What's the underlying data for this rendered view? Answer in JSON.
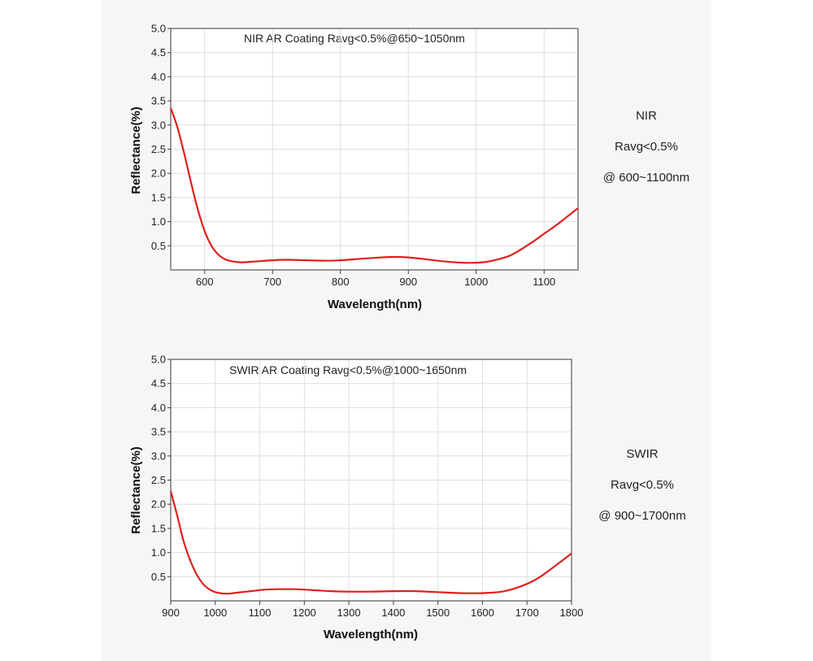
{
  "chart_data": [
    {
      "type": "line",
      "title": "NIR AR Coating Ravg<0.5%@650~1050nm",
      "xlabel": "Wavelength(nm)",
      "ylabel": "Reflectance(%)",
      "xlim": [
        550,
        1150
      ],
      "ylim": [
        0,
        5.0
      ],
      "x_ticks": [
        "600",
        "700",
        "800",
        "900",
        "1000",
        "1100"
      ],
      "x_tick_values": [
        600,
        700,
        800,
        900,
        1000,
        1100
      ],
      "y_ticks": [
        "0.5",
        "1.0",
        "1.5",
        "2.0",
        "2.5",
        "3.0",
        "3.5",
        "4.0",
        "4.5",
        "5.0"
      ],
      "y_tick_values": [
        0.5,
        1.0,
        1.5,
        2.0,
        2.5,
        3.0,
        3.5,
        4.0,
        4.5,
        5.0
      ],
      "grid": true,
      "series": [
        {
          "color": "#e0201b",
          "x": [
            550,
            560,
            570,
            580,
            590,
            600,
            610,
            620,
            630,
            640,
            650,
            660,
            680,
            700,
            720,
            750,
            780,
            800,
            830,
            860,
            880,
            900,
            920,
            950,
            980,
            1000,
            1020,
            1050,
            1080,
            1100,
            1120,
            1150
          ],
          "y": [
            3.35,
            2.95,
            2.4,
            1.8,
            1.25,
            0.8,
            0.5,
            0.32,
            0.22,
            0.18,
            0.16,
            0.16,
            0.18,
            0.2,
            0.21,
            0.2,
            0.19,
            0.2,
            0.23,
            0.26,
            0.27,
            0.26,
            0.23,
            0.18,
            0.15,
            0.15,
            0.18,
            0.3,
            0.55,
            0.75,
            0.95,
            1.28
          ]
        }
      ]
    },
    {
      "type": "line",
      "title": "SWIR AR Coating Ravg<0.5%@1000~1650nm",
      "xlabel": "Wavelength(nm)",
      "ylabel": "Reflectance(%)",
      "xlim": [
        900,
        1800
      ],
      "ylim": [
        0,
        5.0
      ],
      "x_ticks": [
        "900",
        "1000",
        "1100",
        "1200",
        "1300",
        "1400",
        "1500",
        "1600",
        "1700",
        "1800"
      ],
      "x_tick_values": [
        900,
        1000,
        1100,
        1200,
        1300,
        1400,
        1500,
        1600,
        1700,
        1800
      ],
      "y_ticks": [
        "0.5",
        "1.0",
        "1.5",
        "2.0",
        "2.5",
        "3.0",
        "3.5",
        "4.0",
        "4.5",
        "5.0"
      ],
      "y_tick_values": [
        0.5,
        1.0,
        1.5,
        2.0,
        2.5,
        3.0,
        3.5,
        4.0,
        4.5,
        5.0
      ],
      "grid": true,
      "series": [
        {
          "color": "#e0201b",
          "x": [
            900,
            915,
            930,
            950,
            970,
            990,
            1010,
            1030,
            1050,
            1080,
            1110,
            1140,
            1180,
            1220,
            1260,
            1300,
            1350,
            1400,
            1450,
            1500,
            1550,
            1600,
            1650,
            1700,
            1730,
            1760,
            1800
          ],
          "y": [
            2.27,
            1.75,
            1.2,
            0.7,
            0.38,
            0.22,
            0.16,
            0.15,
            0.17,
            0.2,
            0.23,
            0.24,
            0.24,
            0.22,
            0.2,
            0.19,
            0.19,
            0.2,
            0.2,
            0.18,
            0.16,
            0.16,
            0.2,
            0.35,
            0.5,
            0.7,
            0.98
          ]
        }
      ]
    }
  ],
  "side_notes": [
    {
      "line1": "NIR",
      "line2": "Ravg<0.5%",
      "line3": "@ 600~1100nm"
    },
    {
      "line1": "SWIR",
      "line2": "Ravg<0.5%",
      "line3": "@ 900~1700nm"
    }
  ]
}
